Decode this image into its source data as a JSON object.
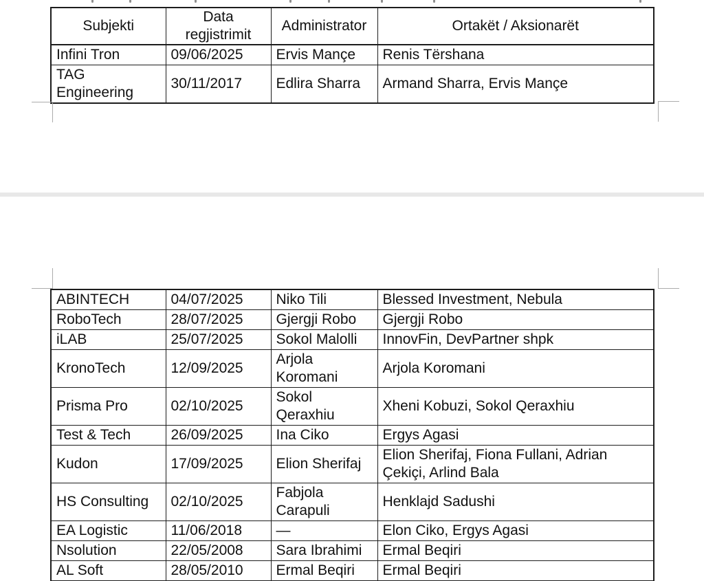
{
  "colors": {
    "page_background": "#ffffff",
    "text": "#111111",
    "table_border": "#1c1c1c",
    "page_separator": "#e8e8e8",
    "boundary_mark": "#ababab"
  },
  "table1": {
    "headers": [
      "Subjekti",
      "Data regjistrimit",
      "Administrator",
      "Ortakët / Aksionarët"
    ],
    "rows": [
      [
        "Infini Tron",
        "09/06/2025",
        "Ervis Mançe",
        "Renis Tërshana"
      ],
      [
        "TAG Engineering",
        "30/11/2017",
        "Edlira Sharra",
        "Armand Sharra, Ervis Mançe"
      ]
    ]
  },
  "table2": {
    "rows": [
      [
        "ABINTECH",
        "04/07/2025",
        "Niko Tili",
        "Blessed Investment, Nebula"
      ],
      [
        "RoboTech",
        "28/07/2025",
        "Gjergji Robo",
        "Gjergji Robo"
      ],
      [
        "iLAB",
        "25/07/2025",
        "Sokol Malolli",
        "InnovFin, DevPartner shpk"
      ],
      [
        "KronoTech",
        "12/09/2025",
        "Arjola Koromani",
        "Arjola Koromani"
      ],
      [
        "Prisma Pro",
        "02/10/2025",
        "Sokol Qeraxhiu",
        "Xheni Kobuzi, Sokol Qeraxhiu"
      ],
      [
        "Test & Tech",
        "26/09/2025",
        "Ina Ciko",
        "Ergys Agasi"
      ],
      [
        "Kudon",
        "17/09/2025",
        "Elion Sherifaj",
        "Elion Sherifaj, Fiona Fullani, Adrian Çekiçi, Arlind Bala"
      ],
      [
        "HS Consulting",
        "02/10/2025",
        "Fabjola Carapuli",
        "Henklajd Sadushi"
      ],
      [
        "EA Logistic",
        "11/06/2018",
        "—",
        "Elon Ciko, Ergys Agasi"
      ],
      [
        "Nsolution",
        "22/05/2008",
        "Sara Ibrahimi",
        "Ermal Beqiri"
      ],
      [
        "AL Soft",
        "28/05/2010",
        "Ermal Beqiri",
        "Ermal Beqiri"
      ]
    ]
  }
}
